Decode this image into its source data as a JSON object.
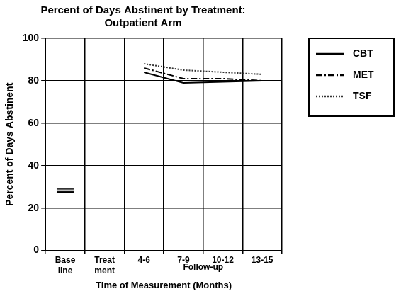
{
  "chart_data": {
    "type": "line",
    "title": [
      "Percent of Days Abstinent by Treatment:",
      "Outpatient Arm"
    ],
    "x_label": "Time of Measurement (Months)",
    "y_label": "Percent of Days Abstinent",
    "categories": [
      "Base line",
      "Treat ment",
      "4-6",
      "7-9",
      "10-12",
      "13-15"
    ],
    "series": [
      {
        "name": "CBT",
        "color": "#000000",
        "line_style": "solid",
        "values": [
          27.5,
          null,
          84,
          79,
          79.5,
          80
        ]
      },
      {
        "name": "MET",
        "color": "#000000",
        "line_style": "dashdot",
        "values": [
          28,
          null,
          86,
          81,
          81,
          80
        ]
      },
      {
        "name": "TSF",
        "color": "#333333",
        "line_style": "dotted",
        "values": [
          29,
          null,
          88,
          85,
          84,
          83
        ]
      }
    ],
    "ylim": [
      0,
      100
    ],
    "yticks": [
      0,
      20,
      40,
      60,
      80,
      100
    ],
    "grid": true,
    "legend": "upper right",
    "annotations": [
      {
        "text": "Follow-up",
        "from": "4-6",
        "to": "13-15"
      }
    ]
  }
}
